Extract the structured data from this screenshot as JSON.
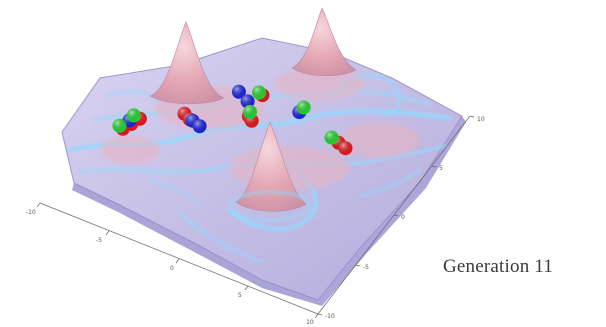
{
  "chart_data": {
    "type": "surface3d",
    "caption": "Generation 11",
    "x_ticks": [
      "-10",
      "-5",
      "0",
      "5",
      "10"
    ],
    "y_ticks": [
      "10",
      "5",
      "0",
      "-5",
      "-10"
    ],
    "xlim": [
      -10,
      10
    ],
    "ylim": [
      -10,
      10
    ],
    "grid": false,
    "surface_colors": {
      "base": "#c7c2e8",
      "peak": "#e8a8b4",
      "ridge": "#7fd0ff",
      "shadow": "#8f86c8"
    },
    "peaks": [
      {
        "x": -4.5,
        "y": 7.5,
        "height": "high"
      },
      {
        "x": 5.5,
        "y": 8.5,
        "height": "high"
      },
      {
        "x": -1.0,
        "y": -1.5,
        "height": "high"
      }
    ],
    "series": [
      {
        "color": "#e8151b",
        "points": [
          {
            "x": -6.5,
            "y": 3.5
          },
          {
            "x": -7.0,
            "y": 2.5
          },
          {
            "x": -7.5,
            "y": 1.5
          },
          {
            "x": -3.5,
            "y": 5.0
          },
          {
            "x": -3.0,
            "y": 4.3
          },
          {
            "x": 1.5,
            "y": 8.0
          },
          {
            "x": 1.0,
            "y": 5.5
          },
          {
            "x": 1.3,
            "y": 5.0
          },
          {
            "x": 7.8,
            "y": 3.8
          },
          {
            "x": 8.4,
            "y": 3.4
          }
        ]
      },
      {
        "color": "#1a22e0",
        "points": [
          {
            "x": -7.2,
            "y": 3.0
          },
          {
            "x": -2.8,
            "y": 4.2
          },
          {
            "x": -2.2,
            "y": 3.6
          },
          {
            "x": -0.2,
            "y": 8.3
          },
          {
            "x": 0.6,
            "y": 7.2
          },
          {
            "x": 4.4,
            "y": 6.4
          }
        ]
      },
      {
        "color": "#22d62e",
        "points": [
          {
            "x": -7.0,
            "y": 3.9
          },
          {
            "x": -7.8,
            "y": 1.9
          },
          {
            "x": 1.2,
            "y": 8.3
          },
          {
            "x": 1.0,
            "y": 6.0
          },
          {
            "x": 4.6,
            "y": 6.9
          },
          {
            "x": 7.2,
            "y": 4.2
          }
        ]
      }
    ]
  }
}
